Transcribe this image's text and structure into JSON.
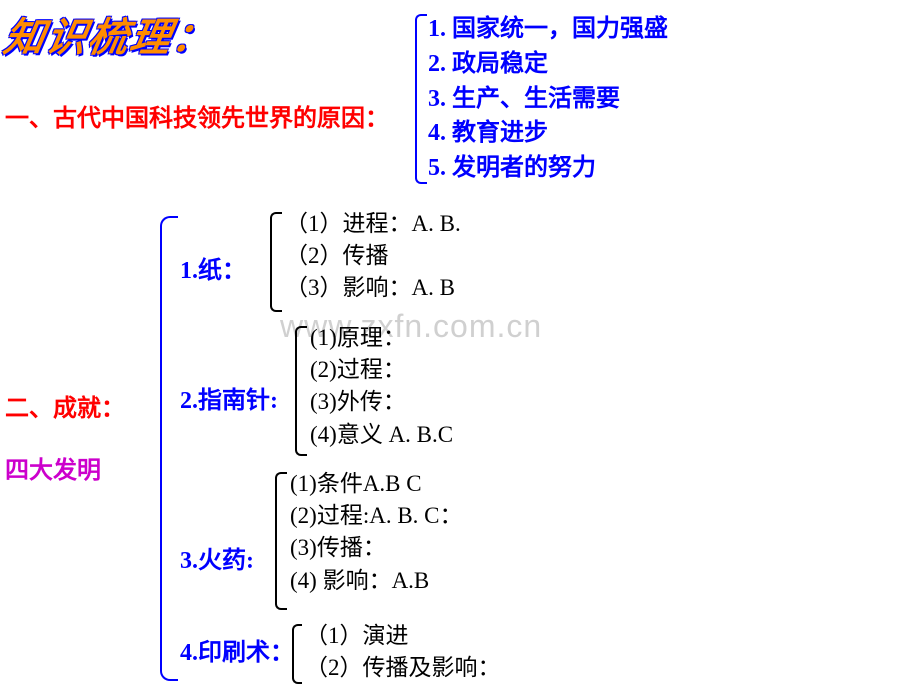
{
  "header": {
    "title": "知识梳理："
  },
  "watermark": "www.zxfn.com.cn",
  "section1": {
    "label": "一、古代中国科技领先世界的原因：",
    "items": [
      "1. 国家统一，国力强盛",
      "2. 政局稳定",
      "3. 生产、生活需要",
      "4. 教育进步",
      "5. 发明者的努力"
    ]
  },
  "section2": {
    "label": "二、成就：",
    "sublabel": "四大发明",
    "inventions": {
      "paper": {
        "label": "1.纸：",
        "items": [
          "（1）进程：A. B.",
          "（2）传播",
          "（3）影响：A.  B"
        ]
      },
      "compass": {
        "label": "2.指南针:",
        "items": [
          "(1)原理：",
          "(2)过程：",
          "(3)外传：",
          "(4)意义 A. B.C"
        ]
      },
      "gunpowder": {
        "label": "3.火药:",
        "items": [
          "(1)条件A.B C",
          "(2)过程:A. B. C：",
          "(3)传播：",
          "(4) 影响：A.B"
        ]
      },
      "printing": {
        "label": "4.印刷术：",
        "items": [
          "（1）演进",
          "（2）传播及影响："
        ]
      }
    }
  },
  "colors": {
    "red": "#ff0000",
    "blue": "#0000ff",
    "magenta": "#cc00cc",
    "black": "#000000",
    "orange": "#ff8c00"
  }
}
